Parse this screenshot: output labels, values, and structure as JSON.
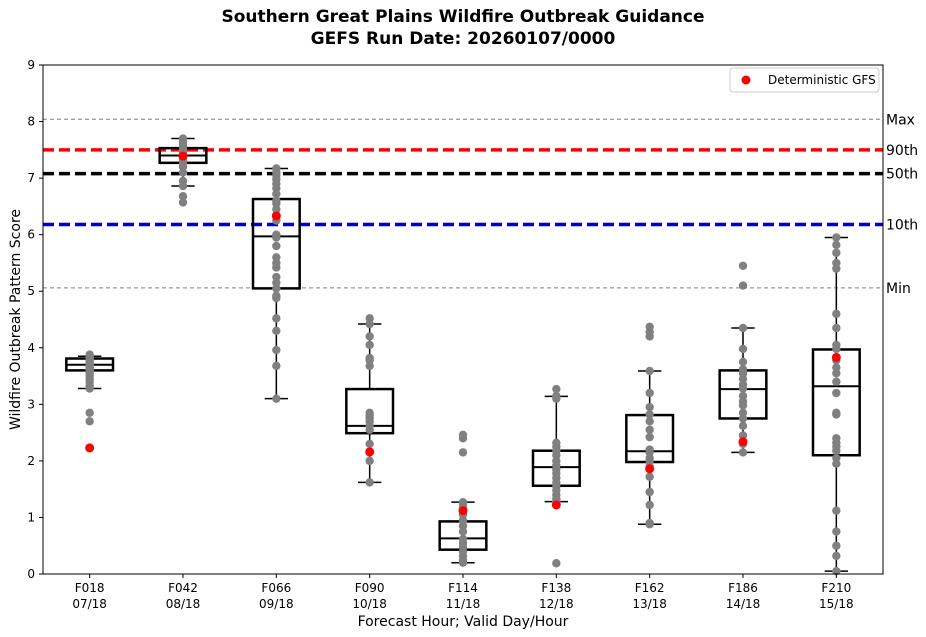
{
  "chart_data": {
    "type": "box",
    "title": "Southern Great Plains Wildfire Outbreak Guidance",
    "subtitle": "GEFS Run Date: 20260107/0000",
    "xlabel": "Forecast Hour; Valid Day/Hour",
    "ylabel": "Wildfire Outbreak Pattern Score",
    "ylim": [
      0,
      9
    ],
    "yticks": [
      "0",
      "1",
      "2",
      "3",
      "4",
      "5",
      "6",
      "7",
      "8",
      "9"
    ],
    "grid": false,
    "legend": {
      "position": "top-right",
      "entries": [
        "Deterministic GFS"
      ]
    },
    "categories": [
      {
        "hour": "F018",
        "valid": "07/18"
      },
      {
        "hour": "F042",
        "valid": "08/18"
      },
      {
        "hour": "F066",
        "valid": "09/18"
      },
      {
        "hour": "F090",
        "valid": "10/18"
      },
      {
        "hour": "F114",
        "valid": "11/18"
      },
      {
        "hour": "F138",
        "valid": "12/18"
      },
      {
        "hour": "F162",
        "valid": "13/18"
      },
      {
        "hour": "F186",
        "valid": "14/18"
      },
      {
        "hour": "F210",
        "valid": "15/18"
      }
    ],
    "boxes": [
      {
        "q1": 3.6,
        "median": 3.7,
        "q3": 3.81,
        "whisker_low": 3.28,
        "whisker_high": 3.85
      },
      {
        "q1": 7.27,
        "median": 7.4,
        "q3": 7.53,
        "whisker_low": 6.86,
        "whisker_high": 7.7
      },
      {
        "q1": 5.05,
        "median": 5.97,
        "q3": 6.63,
        "whisker_low": 3.1,
        "whisker_high": 7.17
      },
      {
        "q1": 2.49,
        "median": 2.62,
        "q3": 3.27,
        "whisker_low": 1.62,
        "whisker_high": 4.42
      },
      {
        "q1": 0.43,
        "median": 0.63,
        "q3": 0.93,
        "whisker_low": 0.2,
        "whisker_high": 1.27
      },
      {
        "q1": 1.56,
        "median": 1.89,
        "q3": 2.18,
        "whisker_low": 1.28,
        "whisker_high": 3.14
      },
      {
        "q1": 1.98,
        "median": 2.17,
        "q3": 2.81,
        "whisker_low": 0.88,
        "whisker_high": 3.59
      },
      {
        "q1": 2.75,
        "median": 3.27,
        "q3": 3.6,
        "whisker_low": 2.15,
        "whisker_high": 4.35
      },
      {
        "q1": 2.1,
        "median": 3.32,
        "q3": 3.97,
        "whisker_low": 0.05,
        "whisker_high": 5.95
      }
    ],
    "members": [
      [
        3.88,
        3.85,
        3.82,
        3.8,
        3.78,
        3.75,
        3.72,
        3.7,
        3.68,
        3.65,
        3.62,
        3.6,
        3.55,
        3.5,
        3.45,
        3.4,
        3.33,
        3.28,
        2.85,
        2.7
      ],
      [
        7.7,
        7.65,
        7.6,
        7.55,
        7.5,
        7.45,
        7.42,
        7.38,
        7.35,
        7.3,
        7.27,
        7.2,
        7.1,
        6.95,
        6.86,
        6.68,
        6.57
      ],
      [
        7.17,
        7.1,
        7.05,
        6.98,
        6.9,
        6.82,
        6.72,
        6.6,
        6.55,
        6.45,
        6.35,
        6.25,
        6.0,
        5.95,
        5.8,
        5.6,
        5.5,
        5.42,
        5.25,
        5.15,
        5.05,
        4.92,
        4.88,
        4.52,
        4.3,
        3.96,
        3.68,
        3.1
      ],
      [
        4.52,
        4.42,
        4.2,
        4.05,
        3.82,
        3.78,
        3.68,
        2.85,
        2.8,
        2.75,
        2.7,
        2.62,
        2.55,
        2.3,
        2.15,
        2.0,
        1.62
      ],
      [
        2.46,
        2.4,
        2.15,
        1.27,
        1.22,
        1.15,
        1.05,
        0.95,
        0.85,
        0.75,
        0.62,
        0.55,
        0.48,
        0.4,
        0.32,
        0.25,
        0.2
      ],
      [
        3.27,
        3.15,
        3.1,
        2.32,
        2.25,
        2.18,
        2.1,
        2.0,
        1.92,
        1.85,
        1.78,
        1.7,
        1.62,
        1.55,
        1.48,
        1.4,
        1.33,
        1.28,
        0.19
      ],
      [
        4.37,
        4.28,
        4.2,
        3.59,
        3.2,
        2.95,
        2.82,
        2.7,
        2.55,
        2.42,
        2.2,
        2.15,
        2.05,
        2.0,
        1.9,
        1.72,
        1.45,
        1.22,
        0.9,
        0.88
      ],
      [
        5.45,
        5.1,
        4.35,
        3.98,
        3.75,
        3.62,
        3.55,
        3.45,
        3.35,
        3.28,
        3.15,
        3.05,
        2.98,
        2.85,
        2.75,
        2.62,
        2.45,
        2.3,
        2.15
      ],
      [
        5.95,
        5.82,
        5.68,
        5.5,
        5.4,
        4.6,
        4.35,
        4.05,
        3.98,
        3.78,
        3.65,
        3.55,
        3.4,
        3.2,
        2.85,
        2.82,
        2.4,
        2.32,
        2.25,
        2.18,
        2.05,
        1.95,
        1.12,
        0.75,
        0.5,
        0.32,
        0.05
      ]
    ],
    "deterministic": [
      2.23,
      7.39,
      6.33,
      2.16,
      1.12,
      1.22,
      1.86,
      2.34,
      3.83
    ],
    "reference_lines": [
      {
        "label": "Max",
        "value": 8.04,
        "color": "#808080",
        "style": "thin-dashed"
      },
      {
        "label": "90th",
        "value": 7.5,
        "color": "#ff0000",
        "style": "thick-dashed"
      },
      {
        "label": "50th",
        "value": 7.08,
        "color": "#000000",
        "style": "thick-dashed"
      },
      {
        "label": "10th",
        "value": 6.18,
        "color": "#0000cc",
        "style": "thick-dashed"
      },
      {
        "label": "Min",
        "value": 5.06,
        "color": "#808080",
        "style": "thin-dashed"
      }
    ],
    "colors": {
      "member": "#808080",
      "deterministic": "#ff0000",
      "box": "#000000"
    }
  }
}
